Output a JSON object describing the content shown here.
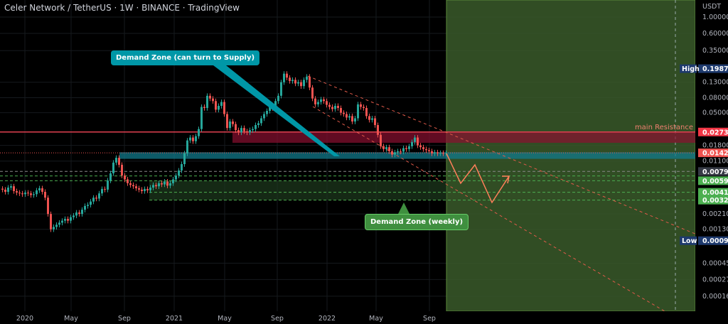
{
  "title": "Celer Network / TetherUS · 1W · BINANCE · TradingView",
  "colors": {
    "up": "#26a69a",
    "down": "#ef5350",
    "resistance": "#ef5350",
    "demand_teal": "#0097a7",
    "demand_green": "#43a047",
    "projection": "#ff7f5a",
    "forecast_box": "#3a5a2a"
  },
  "annotations": {
    "demand_supply": "Demand Zone (can turn to Supply)",
    "demand_weekly": "Demand Zone (weekly)",
    "main_resistance": "main Resistance"
  },
  "price_axis": {
    "unit": "USDT",
    "ticks": [
      "1.00000",
      "0.60000",
      "0.35000",
      "0.13000",
      "0.08000",
      "0.05000",
      "0.01800",
      "0.01100",
      "0.00210",
      "0.00130",
      "0.00045",
      "0.00027",
      "0.00016"
    ],
    "high_label": "High",
    "high_value": "0.19870",
    "low_label": "Low",
    "low_value": "0.00091",
    "level_badges": [
      {
        "value": "0.02735",
        "color": "#f23645"
      },
      {
        "value": "0.01425",
        "color": "#f05350"
      },
      {
        "value": "0.00795",
        "color": "#363a45"
      },
      {
        "value": "0.00595",
        "color": "#4caf50"
      },
      {
        "value": "0.00414",
        "color": "#4caf50"
      },
      {
        "value": "0.00324",
        "color": "#4caf50"
      }
    ]
  },
  "time_axis": {
    "ticks": [
      "2020",
      "May",
      "Sep",
      "2021",
      "May",
      "Sep",
      "2022",
      "May",
      "Sep"
    ]
  },
  "chart_data": {
    "type": "candlestick",
    "interval": "1W",
    "scale": "log",
    "x_range": [
      "2019-10",
      "2022-10"
    ],
    "y_range": [
      0.00012,
      1.3
    ],
    "closes": [
      0.0045,
      0.0042,
      0.0048,
      0.005,
      0.0043,
      0.0041,
      0.004,
      0.0039,
      0.0041,
      0.004,
      0.0038,
      0.0039,
      0.0044,
      0.0047,
      0.0042,
      0.0035,
      0.0021,
      0.0013,
      0.0014,
      0.0015,
      0.0016,
      0.0017,
      0.0018,
      0.0017,
      0.0019,
      0.002,
      0.0022,
      0.0021,
      0.0024,
      0.0027,
      0.0028,
      0.0031,
      0.0035,
      0.0034,
      0.004,
      0.0046,
      0.0045,
      0.006,
      0.0075,
      0.0105,
      0.0122,
      0.0098,
      0.007,
      0.0062,
      0.0055,
      0.0052,
      0.005,
      0.0047,
      0.0045,
      0.0043,
      0.0046,
      0.0044,
      0.0048,
      0.0052,
      0.005,
      0.0055,
      0.0053,
      0.0058,
      0.0051,
      0.0055,
      0.0062,
      0.007,
      0.0082,
      0.01,
      0.014,
      0.021,
      0.023,
      0.0205,
      0.024,
      0.03,
      0.06,
      0.058,
      0.085,
      0.078,
      0.072,
      0.055,
      0.062,
      0.07,
      0.048,
      0.031,
      0.038,
      0.035,
      0.029,
      0.027,
      0.031,
      0.028,
      0.027,
      0.029,
      0.03,
      0.034,
      0.036,
      0.042,
      0.048,
      0.053,
      0.06,
      0.058,
      0.072,
      0.085,
      0.13,
      0.17,
      0.15,
      0.135,
      0.14,
      0.125,
      0.13,
      0.115,
      0.14,
      0.155,
      0.11,
      0.078,
      0.065,
      0.07,
      0.076,
      0.072,
      0.064,
      0.06,
      0.056,
      0.062,
      0.058,
      0.05,
      0.048,
      0.043,
      0.045,
      0.038,
      0.042,
      0.065,
      0.06,
      0.058,
      0.045,
      0.04,
      0.042,
      0.034,
      0.025,
      0.0175,
      0.016,
      0.017,
      0.015,
      0.0135,
      0.0145,
      0.015,
      0.0148,
      0.0165,
      0.016,
      0.0175,
      0.02,
      0.023,
      0.018,
      0.017,
      0.016,
      0.0155,
      0.015,
      0.014,
      0.0145,
      0.014,
      0.0142,
      0.014,
      0.01425
    ],
    "levels": {
      "resistance": 0.02735,
      "resistance_zone": [
        0.0195,
        0.02735
      ],
      "demand_zone": [
        0.0118,
        0.0145
      ],
      "weekly_demand_zone": [
        0.00324,
        0.00595
      ],
      "lines": [
        0.00795,
        0.0069,
        0.00595,
        0.00414,
        0.00324
      ]
    }
  }
}
